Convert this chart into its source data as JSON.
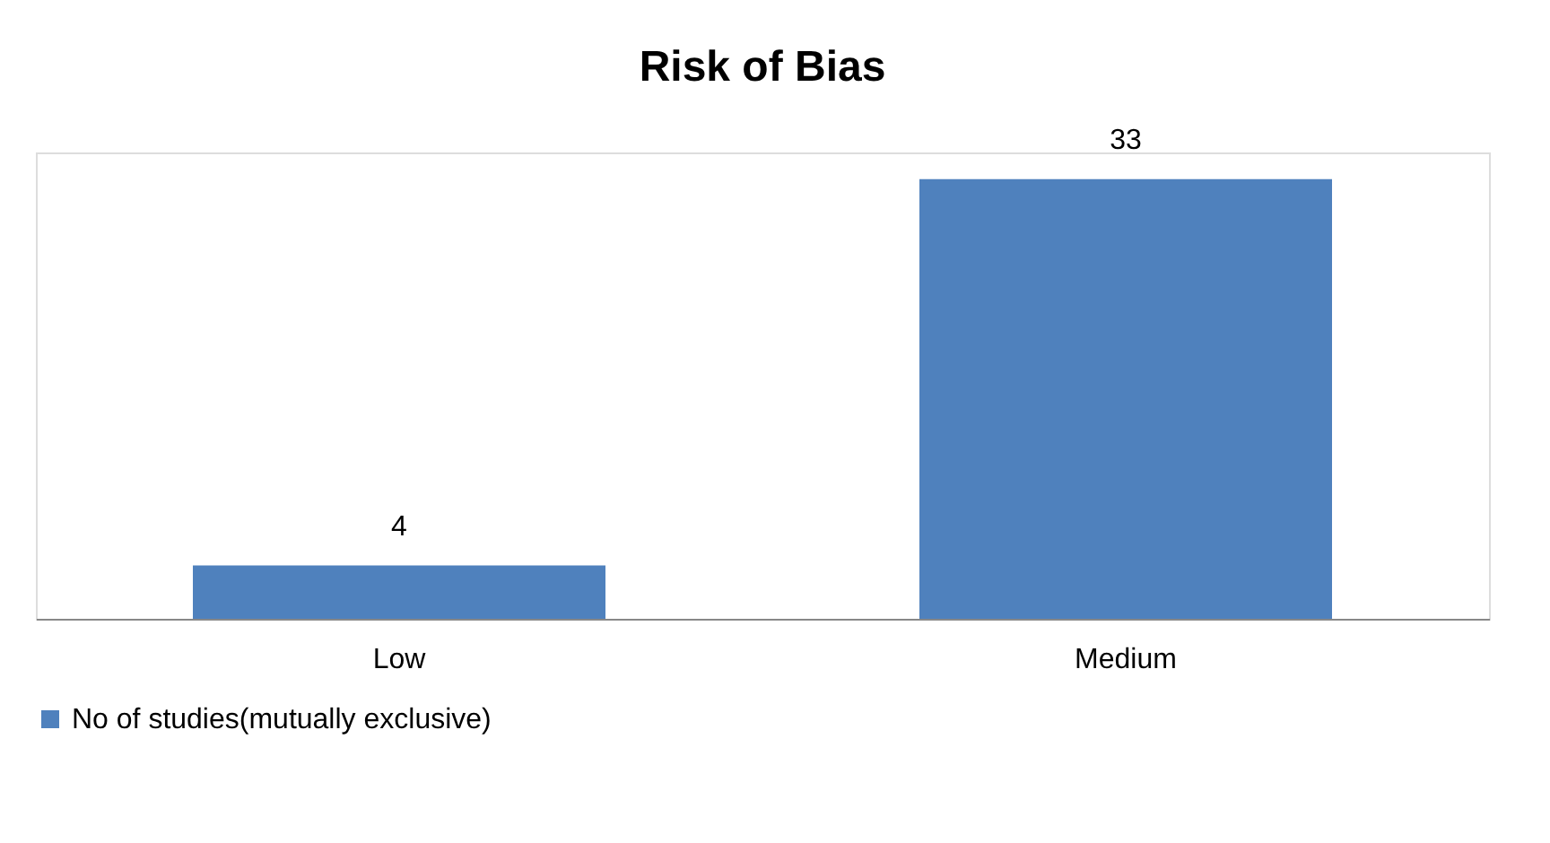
{
  "chart_data": {
    "type": "bar",
    "title": "Risk of Bias",
    "categories": [
      "Low",
      "Medium"
    ],
    "series": [
      {
        "name": "No of studies(mutually exclusive)",
        "color": "#4f81bd",
        "values": [
          4,
          33
        ]
      }
    ],
    "data_labels": true,
    "legend": "bottom",
    "grid": false
  }
}
